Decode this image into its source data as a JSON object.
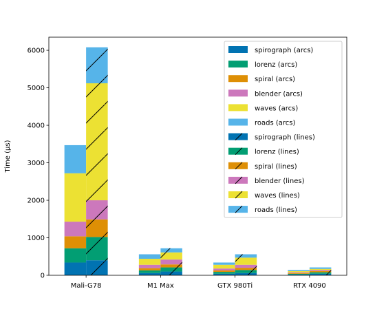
{
  "chart_data": {
    "type": "bar",
    "stacked": true,
    "grouped": true,
    "categories": [
      "Mali-G78",
      "M1 Max",
      "GTX 980Ti",
      "RTX 4090"
    ],
    "ylabel": "Time (μs)",
    "ylim": [
      0,
      6350
    ],
    "yticks": [
      0,
      1000,
      2000,
      3000,
      4000,
      5000,
      6000
    ],
    "legend_position": "top-right",
    "series": [
      {
        "name": "spirograph (arcs)",
        "group": "arcs",
        "color": "#0173b2",
        "hatch": false,
        "values": [
          340,
          60,
          40,
          20
        ]
      },
      {
        "name": "lorenz (arcs)",
        "group": "arcs",
        "color": "#029e73",
        "hatch": false,
        "values": [
          380,
          70,
          50,
          20
        ]
      },
      {
        "name": "spiral (arcs)",
        "group": "arcs",
        "color": "#de8f05",
        "hatch": false,
        "values": [
          320,
          60,
          40,
          20
        ]
      },
      {
        "name": "blender (arcs)",
        "group": "arcs",
        "color": "#cc78bc",
        "hatch": false,
        "values": [
          390,
          90,
          50,
          20
        ]
      },
      {
        "name": "waves (arcs)",
        "group": "arcs",
        "color": "#ece133",
        "hatch": false,
        "values": [
          1290,
          160,
          100,
          30
        ]
      },
      {
        "name": "roads (arcs)",
        "group": "arcs",
        "color": "#56b4e9",
        "hatch": false,
        "values": [
          750,
          120,
          60,
          30
        ]
      },
      {
        "name": "spirograph (lines)",
        "group": "lines",
        "color": "#0173b2",
        "hatch": true,
        "values": [
          400,
          100,
          60,
          40
        ]
      },
      {
        "name": "lorenz (lines)",
        "group": "lines",
        "color": "#029e73",
        "hatch": true,
        "values": [
          620,
          110,
          80,
          40
        ]
      },
      {
        "name": "spiral (lines)",
        "group": "lines",
        "color": "#de8f05",
        "hatch": true,
        "values": [
          470,
          80,
          60,
          30
        ]
      },
      {
        "name": "blender (lines)",
        "group": "lines",
        "color": "#cc78bc",
        "hatch": true,
        "values": [
          510,
          130,
          80,
          30
        ]
      },
      {
        "name": "waves (lines)",
        "group": "lines",
        "color": "#ece133",
        "hatch": true,
        "values": [
          3120,
          190,
          190,
          30
        ]
      },
      {
        "name": "roads (lines)",
        "group": "lines",
        "color": "#56b4e9",
        "hatch": true,
        "values": [
          960,
          110,
          90,
          40
        ]
      }
    ]
  }
}
